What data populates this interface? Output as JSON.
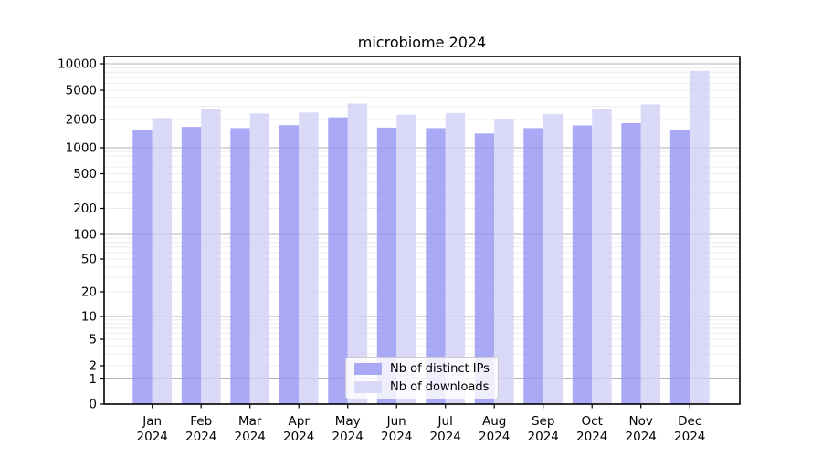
{
  "chart_data": {
    "type": "bar",
    "title": "microbiome 2024",
    "categories": [
      "Jan",
      "Feb",
      "Mar",
      "Apr",
      "May",
      "Jun",
      "Jul",
      "Aug",
      "Sep",
      "Oct",
      "Nov",
      "Dec"
    ],
    "x_tick_year": "2024",
    "series": [
      {
        "name": "Nb of distinct IPs",
        "color": "#a9a9f5",
        "values": [
          1560,
          1670,
          1620,
          1740,
          2140,
          1640,
          1620,
          1420,
          1620,
          1730,
          1830,
          1530
        ]
      },
      {
        "name": "Nb of downloads",
        "color": "#dadaf8",
        "values": [
          2100,
          2820,
          2420,
          2490,
          3300,
          2330,
          2450,
          2000,
          2380,
          2740,
          3230,
          8300
        ]
      }
    ],
    "yscale": "symlog",
    "ylim": [
      0,
      10500
    ],
    "yticks": [
      0,
      1,
      2,
      5,
      10,
      20,
      50,
      100,
      200,
      500,
      1000,
      2000,
      5000,
      10000
    ],
    "grid": true,
    "grid_major_color": "#b3b3b3",
    "grid_minor_color": "#ebebeb",
    "legend_position": "lower center"
  }
}
